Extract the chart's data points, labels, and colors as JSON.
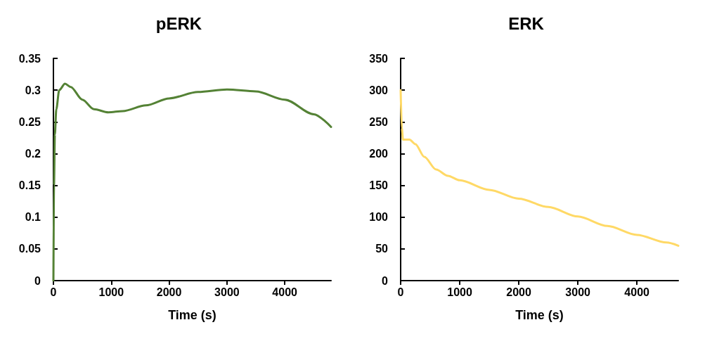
{
  "chart_data": [
    {
      "type": "line",
      "title": "pERK",
      "xlabel": "Time (s)",
      "grid": false,
      "marker": "none",
      "line_style": "solid",
      "xlim": [
        0,
        4800
      ],
      "xticks": [
        0,
        1000,
        2000,
        3000,
        4000
      ],
      "ylim": [
        0,
        0.35
      ],
      "yticks": [
        0,
        0.05,
        0.1,
        0.15,
        0.2,
        0.25,
        0.3,
        0.35
      ],
      "x": [
        0,
        10,
        25,
        50,
        100,
        200,
        300,
        500,
        700,
        950,
        1200,
        1600,
        2000,
        2500,
        3000,
        3500,
        4000,
        4500,
        4800
      ],
      "series": [
        {
          "color": "#548235",
          "values": [
            0,
            0.15,
            0.23,
            0.27,
            0.3,
            0.31,
            0.305,
            0.285,
            0.27,
            0.265,
            0.267,
            0.276,
            0.287,
            0.297,
            0.301,
            0.298,
            0.285,
            0.262,
            0.242
          ]
        }
      ]
    },
    {
      "type": "line",
      "title": "ERK",
      "xlabel": "Time (s)",
      "grid": false,
      "marker": "none",
      "line_style": "solid",
      "xlim": [
        0,
        4700
      ],
      "xticks": [
        0,
        1000,
        2000,
        3000,
        4000
      ],
      "ylim": [
        0,
        350
      ],
      "yticks": [
        0,
        50,
        100,
        150,
        200,
        250,
        300,
        350
      ],
      "x": [
        0,
        20,
        40,
        150,
        250,
        400,
        600,
        800,
        1000,
        1500,
        2000,
        2500,
        3000,
        3500,
        4000,
        4500,
        4700
      ],
      "series": [
        {
          "color": "#ffd966",
          "values": [
            300,
            240,
            222,
            222,
            215,
            195,
            175,
            165,
            158,
            143,
            129,
            116,
            101,
            86,
            72,
            60,
            55
          ]
        }
      ]
    }
  ]
}
